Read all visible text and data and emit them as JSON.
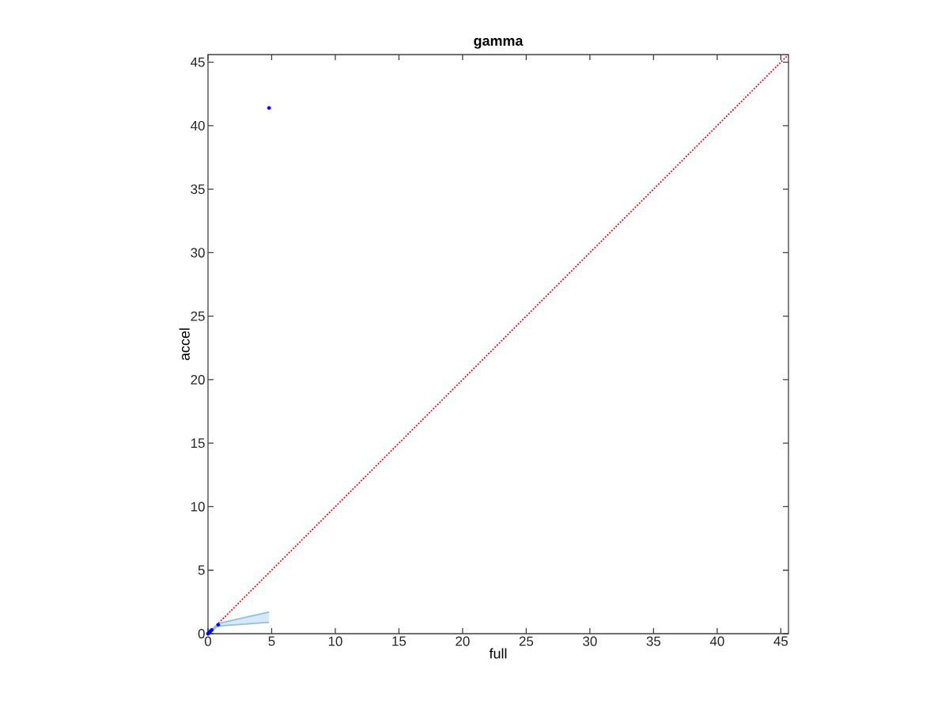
{
  "chart_data": {
    "type": "scatter",
    "title": "gamma",
    "xlabel": "full",
    "ylabel": "accel",
    "xlim": [
      0,
      45.6
    ],
    "ylim": [
      0,
      45.6
    ],
    "xticks": [
      0,
      5,
      10,
      15,
      20,
      25,
      30,
      35,
      40,
      45
    ],
    "yticks": [
      0,
      5,
      10,
      15,
      20,
      25,
      30,
      35,
      40,
      45
    ],
    "grid": false,
    "legend": false,
    "series": [
      {
        "type": "line",
        "color": "#ff0000",
        "line_style": "dotted",
        "marker": "none",
        "x": [
          0,
          45.6
        ],
        "values": [
          0,
          45.6
        ]
      },
      {
        "type": "line",
        "color": "#8fc0e3",
        "marker": "none",
        "x": [
          0,
          0.8,
          4.8
        ],
        "values": [
          0,
          0.8,
          1.7
        ]
      },
      {
        "type": "line",
        "color": "#8fc0e3",
        "marker": "none",
        "x": [
          0,
          0.8,
          4.8
        ],
        "values": [
          0,
          0.6,
          0.9
        ],
        "lower": [
          0,
          0.6,
          0.9
        ],
        "upper": [
          0,
          0.8,
          1.7
        ]
      },
      {
        "color": "#0000ff",
        "marker": "circle",
        "x": [
          0,
          0.1,
          0.2,
          0.3,
          0.8,
          4.8
        ],
        "values": [
          0,
          0.1,
          0.2,
          0.3,
          0.7,
          41.4
        ]
      }
    ]
  }
}
